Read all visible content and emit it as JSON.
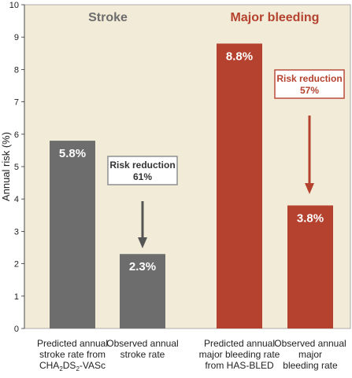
{
  "chart_data": {
    "type": "bar",
    "ylabel": "Annual risk (%)",
    "ylim": [
      0,
      10
    ],
    "yticks": [
      0,
      1,
      2,
      3,
      4,
      5,
      6,
      7,
      8,
      9,
      10
    ],
    "grid": false,
    "background": "#f1ebd8",
    "groups": [
      {
        "title": "Stroke",
        "title_color": "#6d6d6d",
        "bar_color": "#6d6d6d",
        "bars": [
          {
            "value": 5.8,
            "value_label": "5.8%",
            "category_lines": [
              "Predicted annual",
              "stroke rate from"
            ],
            "category_formula": [
              "CHA",
              "2",
              "DS",
              "2",
              "-VASc"
            ]
          },
          {
            "value": 2.3,
            "value_label": "2.3%",
            "category_lines": [
              "Observed annual",
              "stroke rate"
            ]
          }
        ],
        "annotation": {
          "lines": [
            "Risk reduction",
            "61%"
          ],
          "color": "#555555",
          "border": "#888888",
          "text_color": "#333333"
        }
      },
      {
        "title": "Major bleeding",
        "title_color": "#b5422f",
        "bar_color": "#b5422f",
        "bars": [
          {
            "value": 8.8,
            "value_label": "8.8%",
            "category_lines": [
              "Predicted annual",
              "major bleeding rate",
              "from HAS-BLED"
            ]
          },
          {
            "value": 3.8,
            "value_label": "3.8%",
            "category_lines": [
              "Observed annual",
              "major",
              "bleeding rate"
            ]
          }
        ],
        "annotation": {
          "lines": [
            "Risk reduction",
            "57%"
          ],
          "color": "#b5422f",
          "border": "#b5422f",
          "text_color": "#b5422f"
        }
      }
    ]
  }
}
